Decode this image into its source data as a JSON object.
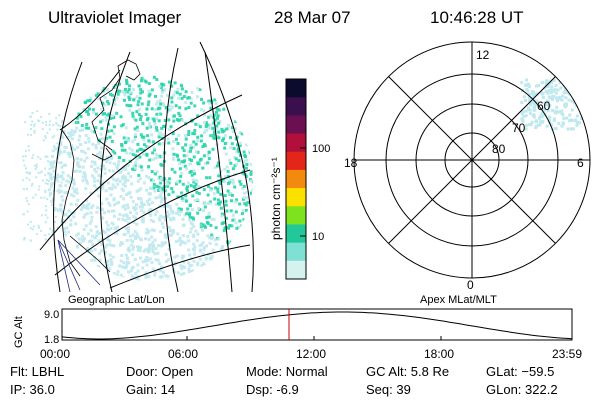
{
  "header": {
    "instrument": "Ultraviolet Imager",
    "date": "28 Mar 07",
    "time": "10:46:28 UT"
  },
  "colorbar": {
    "unit_label": "photon cm⁻²s⁻¹",
    "tick_100": "100",
    "tick_10": "10",
    "colors": [
      "#0b0b2e",
      "#3a0f4e",
      "#6a1050",
      "#b0103a",
      "#e4261a",
      "#f28a10",
      "#fbe000",
      "#7fe21f",
      "#23c89a",
      "#7fe0d6",
      "#d6f2ef"
    ]
  },
  "geo_panel": {
    "label": "Geographic Lat/Lon",
    "noise_color": "#bfe9ef",
    "emission_color": "#27d4a8"
  },
  "polar_panel": {
    "label": "Apex  MLat/MLT",
    "mlt_12": "12",
    "mlt_18": "18",
    "mlt_6": "6",
    "mlt_0": "0",
    "lat_60": "60",
    "lat_70": "70",
    "lat_80": "80"
  },
  "altitude_plot": {
    "axis_label": "GC Alt",
    "y_max": "9.0",
    "y_min": "1.8",
    "x_ticks": [
      "00:00",
      "06:00",
      "12:00",
      "18:00",
      "23:59"
    ],
    "current_time_color": "#cc0000"
  },
  "footer": {
    "flt": "Flt: LBHL",
    "ip": "IP: 36.0",
    "door": "Door: Open",
    "gain": "Gain: 14",
    "mode": "Mode: Normal",
    "dsp": "Dsp:    -6.9",
    "gc_alt": "GC Alt: 5.8 Re",
    "seq": "Seq: 39",
    "glat": "GLat: −59.5",
    "glon": "GLon: 322.2"
  }
}
